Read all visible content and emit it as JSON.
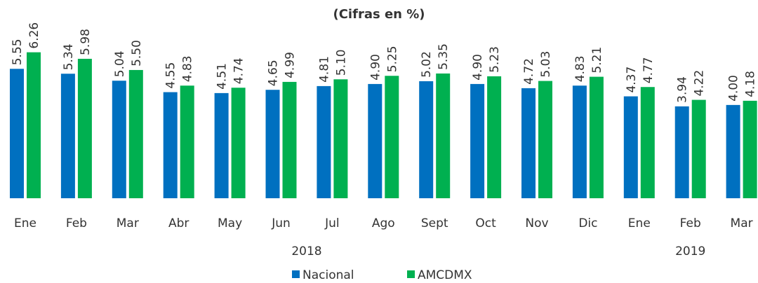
{
  "chart_data": {
    "type": "bar",
    "title": "(Cifras en %)",
    "groups": [
      {
        "label": "2018",
        "categories": [
          "Ene",
          "Feb",
          "Mar",
          "Abr",
          "May",
          "Jun",
          "Jul",
          "Ago",
          "Sept",
          "Oct",
          "Nov",
          "Dic"
        ]
      },
      {
        "label": "2019",
        "categories": [
          "Ene",
          "Feb",
          "Mar"
        ]
      }
    ],
    "series": [
      {
        "name": "Nacional",
        "color": "#0070c0",
        "values": [
          5.55,
          5.34,
          5.04,
          4.55,
          4.51,
          4.65,
          4.81,
          4.9,
          5.02,
          4.9,
          4.72,
          4.83,
          4.37,
          3.94,
          4.0
        ],
        "value_labels": [
          "5.55",
          "5.34",
          "5.04",
          "4.55",
          "4.51",
          "4.65",
          "4.81",
          "4.90",
          "5.02",
          "4.90",
          "4.72",
          "4.83",
          "4.37",
          "3.94",
          "4.00"
        ]
      },
      {
        "name": "AMCDMX",
        "color": "#00b050",
        "values": [
          6.26,
          5.98,
          5.5,
          4.83,
          4.74,
          4.99,
          5.1,
          5.25,
          5.35,
          5.23,
          5.03,
          5.21,
          4.77,
          4.22,
          4.18
        ],
        "value_labels": [
          "6.26",
          "5.98",
          "5.50",
          "4.83",
          "4.74",
          "4.99",
          "5.10",
          "5.25",
          "5.35",
          "5.23",
          "5.03",
          "5.21",
          "4.77",
          "4.22",
          "4.18"
        ]
      }
    ],
    "ylim": [
      0,
      7
    ]
  }
}
